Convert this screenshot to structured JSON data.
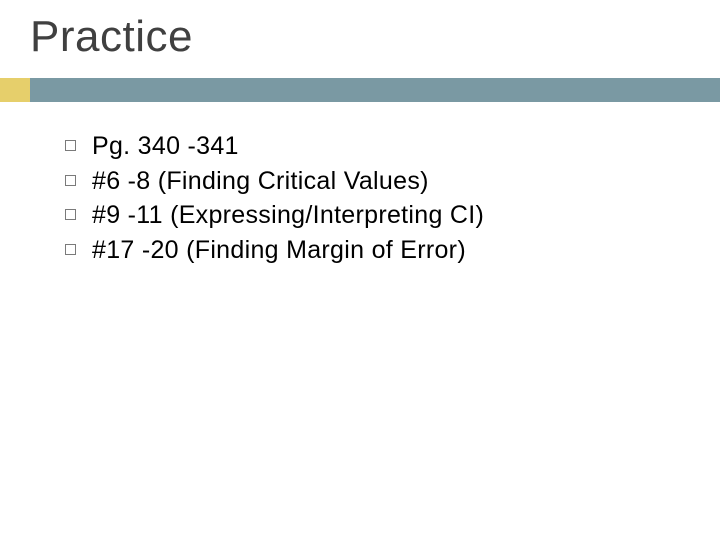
{
  "title": "Practice",
  "title_fontsize": 44,
  "title_color": "#404040",
  "bar": {
    "accent_color": "#e6cf6b",
    "accent_width": 30,
    "main_color": "#7a99a3",
    "height": 24
  },
  "bullets": [
    "Pg. 340 -341",
    "#6 -8 (Finding Critical Values)",
    "#9 -11 (Expressing/Interpreting CI)",
    "#17 -20 (Finding Margin of Error)"
  ],
  "bullet_fontsize": 25,
  "bullet_text_color": "#000000",
  "bullet_marker_border_color": "#7a7a7a",
  "background_color": "#ffffff"
}
